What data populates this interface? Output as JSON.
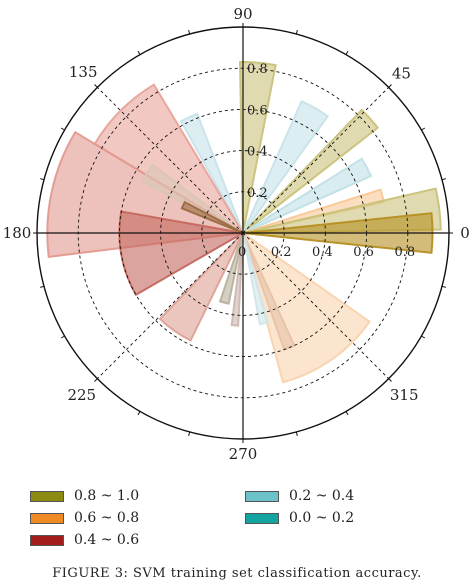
{
  "chart_data": {
    "type": "polar-bar",
    "angle_ticks": [
      "0",
      "45",
      "90",
      "135",
      "180",
      "225",
      "270",
      "315"
    ],
    "radial_ticks": [
      "0.2",
      "0.4",
      "0.6",
      "0.8"
    ],
    "radial_range": [
      0,
      1.0
    ],
    "grid": true,
    "legend_position": "bottom",
    "legend": [
      {
        "label": "0.8 ~ 1.0",
        "color": "#8b8b12"
      },
      {
        "label": "0.6 ~ 0.8",
        "color": "#f08a24"
      },
      {
        "label": "0.4 ~ 0.6",
        "color": "#a51c1c"
      },
      {
        "label": "0.2 ~ 0.4",
        "color": "#6cc2c8"
      },
      {
        "label": "0.0 ~ 0.2",
        "color": "#13a4a0"
      }
    ],
    "wedges": [
      {
        "theta": 85,
        "width": 12,
        "r": 0.83,
        "color": "#c9c27a"
      },
      {
        "theta": 60,
        "width": 12,
        "r": 0.7,
        "color": "#c6e3ea"
      },
      {
        "theta": 42,
        "width": 8,
        "r": 0.83,
        "color": "#c9c27a"
      },
      {
        "theta": 28,
        "width": 8,
        "r": 0.68,
        "color": "#bfe0e6"
      },
      {
        "theta": 15,
        "width": 5,
        "r": 0.7,
        "color": "#f9c896"
      },
      {
        "theta": 7,
        "width": 12,
        "r": 0.96,
        "color": "#c9c27a"
      },
      {
        "theta": 0,
        "width": 12,
        "r": 0.92,
        "color": "#b58f20"
      },
      {
        "theta": 115,
        "width": 8,
        "r": 0.62,
        "color": "#c6e3ea"
      },
      {
        "theta": 135,
        "width": 28,
        "r": 0.84,
        "color": "#e8a39a"
      },
      {
        "theta": 168,
        "width": 38,
        "r": 0.95,
        "color": "#e2998f"
      },
      {
        "theta": 190,
        "width": 40,
        "r": 0.6,
        "color": "#c4685d"
      },
      {
        "theta": 148,
        "width": 10,
        "r": 0.55,
        "color": "#d9c6b4"
      },
      {
        "theta": 155,
        "width": 6,
        "r": 0.32,
        "color": "#9b6a40"
      },
      {
        "theta": 235,
        "width": 18,
        "r": 0.58,
        "color": "#dea095"
      },
      {
        "theta": 255,
        "width": 7,
        "r": 0.35,
        "color": "#b9b09c"
      },
      {
        "theta": 265,
        "width": 4,
        "r": 0.45,
        "color": "#cbb8b0"
      },
      {
        "theta": 292,
        "width": 5,
        "r": 0.6,
        "color": "#caa8a0"
      },
      {
        "theta": 305,
        "width": 40,
        "r": 0.75,
        "color": "#f9d3ad"
      },
      {
        "theta": 283,
        "width": 5,
        "r": 0.45,
        "color": "#cfe6ea"
      }
    ]
  },
  "caption": "FIGURE 3: SVM training set classification accuracy."
}
